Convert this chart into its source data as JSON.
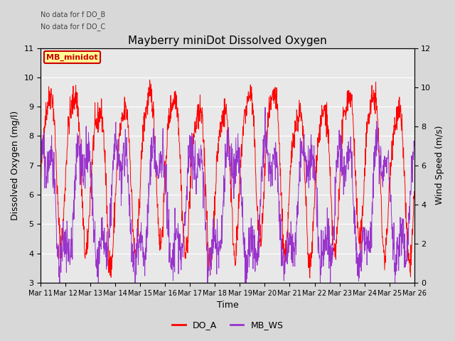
{
  "title": "Mayberry miniDot Dissolved Oxygen",
  "ylabel_left": "Dissolved Oxygen (mg/l)",
  "ylabel_right": "Wind Speed (m/s)",
  "xlabel": "Time",
  "ylim_left": [
    3.0,
    11.0
  ],
  "ylim_right": [
    0,
    12
  ],
  "yticks_left": [
    3.0,
    4.0,
    5.0,
    6.0,
    7.0,
    8.0,
    9.0,
    10.0,
    11.0
  ],
  "yticks_right": [
    0,
    2,
    4,
    6,
    8,
    10,
    12
  ],
  "xtick_labels": [
    "Mar 11",
    "Mar 12",
    "Mar 13",
    "Mar 14",
    "Mar 15",
    "Mar 16",
    "Mar 17",
    "Mar 18",
    "Mar 19",
    "Mar 20",
    "Mar 21",
    "Mar 22",
    "Mar 23",
    "Mar 24",
    "Mar 25",
    "Mar 26"
  ],
  "no_data_text1": "No data for f DO_B",
  "no_data_text2": "No data for f DO_C",
  "legend_box_label": "MB_minidot",
  "do_a_color": "#ff0000",
  "mb_ws_color": "#9933cc",
  "background_color": "#d8d8d8",
  "plot_bg_color": "#e8e8e8",
  "grid_color": "#ffffff",
  "legend_label_do_a": "DO_A",
  "legend_label_mb_ws": "MB_WS",
  "title_fontsize": 11,
  "axis_fontsize": 9,
  "tick_fontsize": 8,
  "xtick_fontsize": 7
}
